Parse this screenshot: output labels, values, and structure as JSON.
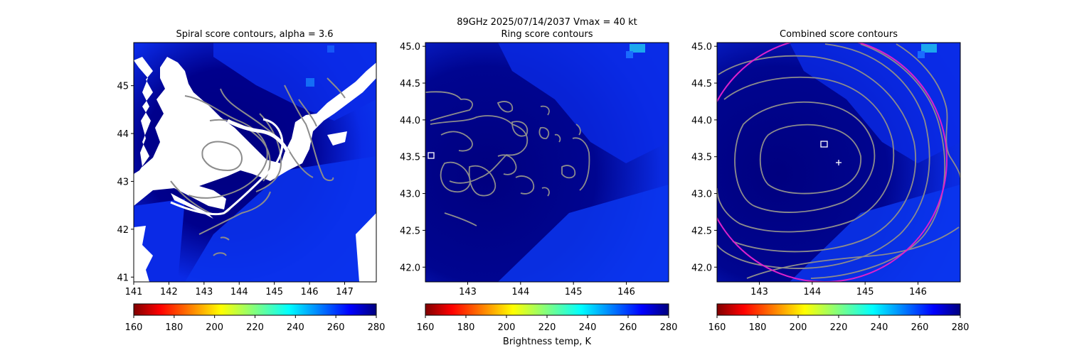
{
  "figure": {
    "suptitle_line1": "89GHz  2025/07/14/2037    Vmax = 40 kt",
    "colorbar_label": "Brightness temp, K"
  },
  "colors": {
    "background_dark": "#00007f",
    "field_blue": "#0a2ae6",
    "contour": "#8c8c8c",
    "ring_circle": "#dd22cc",
    "marker": "#ffffff",
    "gap": "#ffffff"
  },
  "chart_data": [
    {
      "type": "heatmap",
      "title": "Spiral score contours, alpha =  3.6",
      "xlim": [
        141,
        147.9
      ],
      "ylim": [
        40.9,
        45.9
      ],
      "xticks": [
        141,
        142,
        143,
        144,
        145,
        146,
        147
      ],
      "yticks": [
        41,
        42,
        43,
        44,
        45
      ],
      "marker_plus": {
        "x": 144.4,
        "y": 43.4
      },
      "colorbar": {
        "cmap": "jet_r",
        "range": [
          160,
          280
        ],
        "ticks": [
          160,
          180,
          200,
          220,
          240,
          260,
          280
        ]
      }
    },
    {
      "type": "heatmap",
      "title": "Ring score contours",
      "xlim": [
        142.2,
        146.8
      ],
      "ylim": [
        41.8,
        45.05
      ],
      "xticks": [
        143,
        144,
        145,
        146
      ],
      "yticks": [
        42.0,
        42.5,
        43.0,
        43.5,
        44.0,
        44.5,
        45.0
      ],
      "ytick_labels": [
        "42.0",
        "42.5",
        "43.0",
        "43.5",
        "44.0",
        "44.5",
        "45.0"
      ],
      "marker_square": {
        "x": 142.3,
        "y": 43.52
      },
      "colorbar": {
        "cmap": "jet_r",
        "range": [
          160,
          280
        ],
        "ticks": [
          160,
          180,
          200,
          220,
          240,
          260,
          280
        ]
      }
    },
    {
      "type": "heatmap",
      "title": "Combined score contours",
      "xlim": [
        142.2,
        146.8
      ],
      "ylim": [
        41.8,
        45.05
      ],
      "xticks": [
        143,
        144,
        145,
        146
      ],
      "yticks": [
        42.0,
        42.5,
        43.0,
        43.5,
        44.0,
        44.5,
        45.0
      ],
      "ytick_labels": [
        "42.0",
        "42.5",
        "43.0",
        "43.5",
        "44.0",
        "44.5",
        "45.0"
      ],
      "marker_square": {
        "x": 144.2,
        "y": 43.68
      },
      "marker_plus": {
        "x": 144.4,
        "y": 43.42
      },
      "ring_circle": {
        "cx": 144.2,
        "cy": 43.5,
        "r": 2.55
      },
      "colorbar": {
        "cmap": "jet_r",
        "range": [
          160,
          280
        ],
        "ticks": [
          160,
          180,
          200,
          220,
          240,
          260,
          280
        ]
      }
    }
  ]
}
